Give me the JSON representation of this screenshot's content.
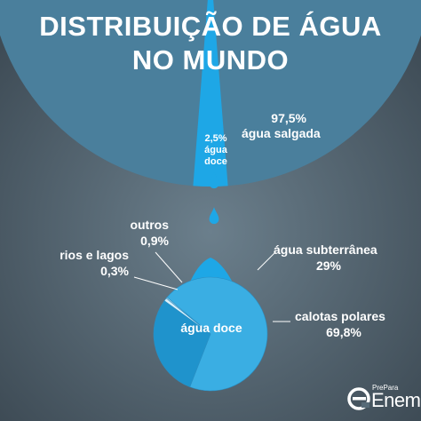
{
  "title_line1": "DISTRIBUIÇÃO DE ÁGUA",
  "title_line2": "NO MUNDO",
  "colors": {
    "background": "#5a6e7b",
    "background_dark": "#3e4c56",
    "salt_water": "#4a7f9c",
    "fresh_water": "#1ea7e6",
    "ice": "#4fb9ec"
  },
  "chart_data": [
    {
      "type": "pie",
      "slices": [
        {
          "label": "água salgada",
          "value": 97.5,
          "value_label": "97,5%"
        },
        {
          "label": "água doce",
          "value": 2.5,
          "value_label": "2,5%"
        }
      ],
      "labels": {
        "salt_pct": "97,5%",
        "salt_name": "água salgada",
        "fresh_pct": "2,5%",
        "fresh_line2": "água",
        "fresh_line3": "doce"
      }
    },
    {
      "type": "pie",
      "title": "água doce",
      "slices": [
        {
          "label": "calotas polares",
          "value": 69.8,
          "value_label": "69,8%"
        },
        {
          "label": "água subterrânea",
          "value": 29,
          "value_label": "29%"
        },
        {
          "label": "outros",
          "value": 0.9,
          "value_label": "0,9%"
        },
        {
          "label": "rios e lagos",
          "value": 0.3,
          "value_label": "0,3%"
        }
      ]
    }
  ],
  "logo": {
    "prefix": "PrePara",
    "name": "Enem"
  }
}
